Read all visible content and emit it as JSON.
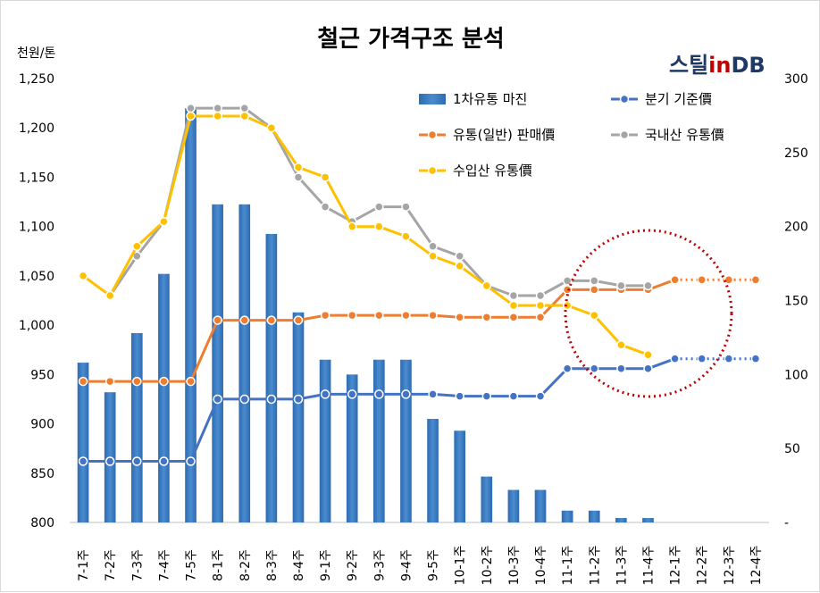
{
  "title": "철근 가격구조 분석",
  "y_unit": "천원/톤",
  "logo": {
    "part1": "스틸",
    "part2": "in",
    "part3": "DB"
  },
  "colors": {
    "bar": "#4a8bd0",
    "bar_dark": "#2e6bb0",
    "quarter": "#4472c4",
    "distribution": "#ed7d31",
    "domestic": "#a5a5a5",
    "import": "#ffc000",
    "highlight_circle": "#c00000"
  },
  "chart_data": {
    "type": "bar+line",
    "categories": [
      "7-1주",
      "7-2주",
      "7-3주",
      "7-4주",
      "7-5주",
      "8-1주",
      "8-2주",
      "8-3주",
      "8-4주",
      "9-1주",
      "9-2주",
      "9-3주",
      "9-4주",
      "9-5주",
      "10-1주",
      "10-2주",
      "10-3주",
      "10-4주",
      "11-1주",
      "11-2주",
      "11-3주",
      "11-4주",
      "12-1주",
      "12-2주",
      "12-3주",
      "12-4주"
    ],
    "y_left": {
      "min": 800,
      "max": 1250,
      "ticks": [
        800,
        850,
        900,
        950,
        "1,000",
        "1,050",
        "1,100",
        "1,150",
        "1,200",
        "1,250"
      ]
    },
    "y_right": {
      "min": 0,
      "max": 300,
      "ticks": [
        "-",
        "50",
        "100",
        "150",
        "200",
        "250",
        "300"
      ]
    },
    "grid": false,
    "series": [
      {
        "name": "1차유통 마진",
        "kind": "bar",
        "axis": "right",
        "values": [
          108,
          88,
          128,
          168,
          280,
          215,
          215,
          195,
          142,
          110,
          100,
          110,
          110,
          70,
          62,
          31,
          22,
          22,
          8,
          8,
          3,
          3,
          null,
          null,
          null,
          null
        ]
      },
      {
        "name": "분기 기준價",
        "kind": "line",
        "axis": "left",
        "values": [
          862,
          862,
          862,
          862,
          862,
          925,
          925,
          925,
          925,
          930,
          930,
          930,
          930,
          930,
          928,
          928,
          928,
          928,
          956,
          956,
          956,
          956,
          966,
          966,
          966,
          966
        ],
        "dotted_from": 22
      },
      {
        "name": "유통(일반) 판매價",
        "kind": "line",
        "axis": "left",
        "values": [
          943,
          943,
          943,
          943,
          943,
          1005,
          1005,
          1005,
          1005,
          1010,
          1010,
          1010,
          1010,
          1010,
          1008,
          1008,
          1008,
          1008,
          1036,
          1036,
          1036,
          1036,
          1046,
          1046,
          1046,
          1046
        ],
        "dotted_from": 22
      },
      {
        "name": "국내산 유통價",
        "kind": "line",
        "axis": "left",
        "values": [
          null,
          1030,
          1070,
          1105,
          1220,
          1220,
          1220,
          1200,
          1150,
          1120,
          1105,
          1120,
          1120,
          1080,
          1070,
          1040,
          1030,
          1030,
          1045,
          1045,
          1040,
          1040,
          null,
          null,
          null,
          null
        ]
      },
      {
        "name": "수입산 유통價",
        "kind": "line",
        "axis": "left",
        "values": [
          1050,
          1030,
          1080,
          1105,
          1212,
          1212,
          1212,
          1200,
          1160,
          1150,
          1100,
          1100,
          1090,
          1070,
          1060,
          1040,
          1020,
          1020,
          1020,
          1010,
          980,
          970,
          null,
          null,
          null,
          null
        ]
      }
    ]
  }
}
